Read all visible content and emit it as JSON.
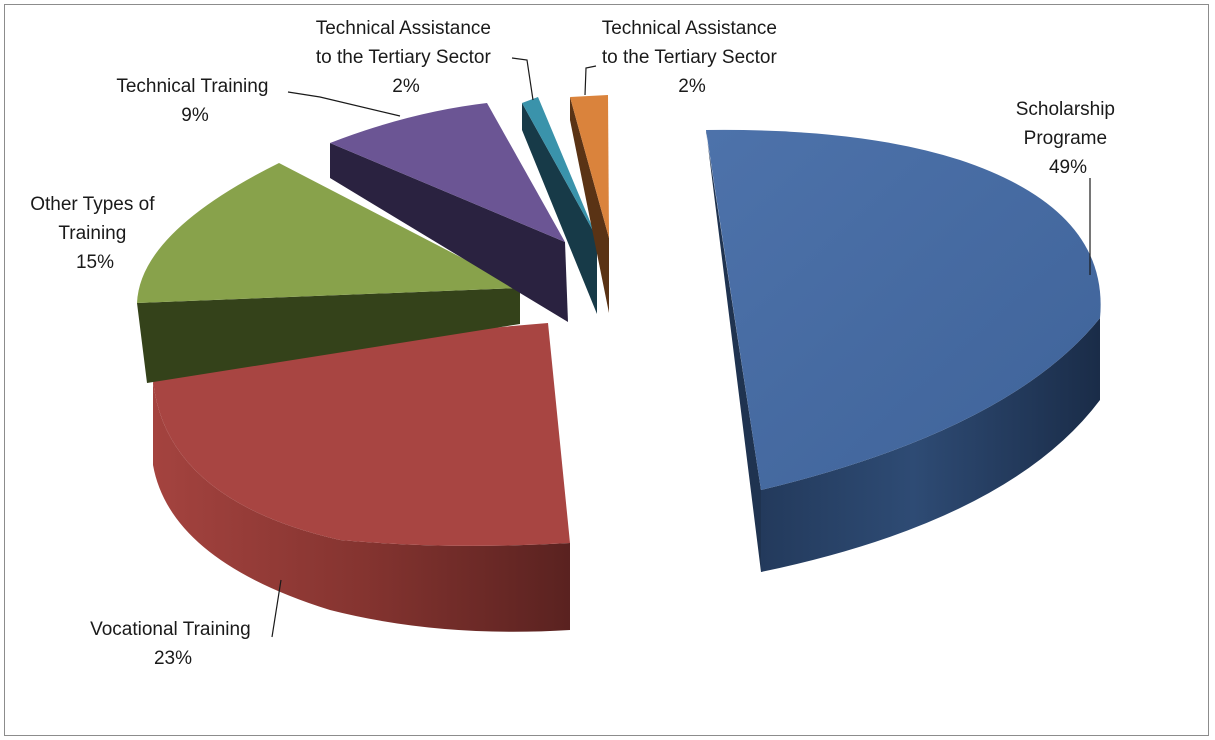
{
  "chart_data": {
    "type": "pie",
    "style": "3d-exploded",
    "legend": "none",
    "slices": [
      {
        "label_lines": [
          "Scholarship",
          "Programe"
        ],
        "pct_text": "49%",
        "value": 49,
        "color": "#4a6fa6"
      },
      {
        "label_lines": [
          "Vocational Training"
        ],
        "pct_text": "23%",
        "value": 23,
        "color": "#a94442"
      },
      {
        "label_lines": [
          "Other Types of",
          "Training"
        ],
        "pct_text": "15%",
        "value": 15,
        "color": "#87a24b"
      },
      {
        "label_lines": [
          "Technical Training"
        ],
        "pct_text": "9%",
        "value": 9,
        "color": "#6a5493"
      },
      {
        "label_lines": [
          "Technical Assistance",
          "to the Tertiary Sector"
        ],
        "pct_text": "2%",
        "value": 2,
        "color": "#3a92aa"
      },
      {
        "label_lines": [
          "Technical Assistance",
          "to the Tertiary Sector"
        ],
        "pct_text": "2%",
        "value": 2,
        "color": "#d9823b"
      }
    ]
  }
}
